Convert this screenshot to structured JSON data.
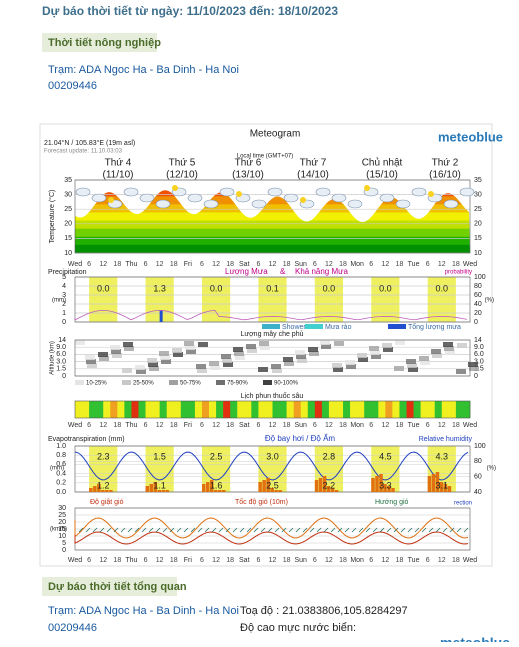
{
  "header": {
    "title": "Dự báo thời tiết từ ngày: 11/10/2023 đến: 18/10/2023"
  },
  "section1": {
    "label": "Thời tiết nông nghiệp",
    "station": "Trạm: ADA Ngoc Ha - Ba Dinh - Ha Noi",
    "code": "00209446"
  },
  "meteogram": {
    "title": "Meteogram",
    "brand": "meteoblue",
    "coords": "21.04°N / 105.83°E (19m asl)",
    "update": "Forecast update: 11.10.03:03",
    "local_time": "Local time (GMT+07)",
    "days": [
      {
        "name": "Thứ 4",
        "date": "(11/10)"
      },
      {
        "name": "Thứ 5",
        "date": "(12/10)"
      },
      {
        "name": "Thứ 6",
        "date": "(13/10)"
      },
      {
        "name": "Thứ 7",
        "date": "(14/10)"
      },
      {
        "name": "Chủ nhật",
        "date": "(15/10)"
      },
      {
        "name": "Thứ 2",
        "date": "(16/10)"
      }
    ],
    "hours": [
      "Wed",
      "6",
      "12",
      "18",
      "Thu",
      "6",
      "12",
      "18",
      "Fri",
      "6",
      "12",
      "18",
      "Sat",
      "6",
      "12",
      "18",
      "Sun",
      "6",
      "12",
      "18",
      "Mon",
      "6",
      "12",
      "18",
      "Tue",
      "6",
      "12",
      "18",
      "Wed"
    ],
    "temperature": {
      "axis_label": "Temperature (°C)",
      "yticks": [
        "35",
        "30",
        "25",
        "20",
        "15",
        "10"
      ]
    },
    "precipitation": {
      "label": "Precipitation",
      "title": "Lượng Mưa",
      "amp": "&",
      "title2": "Khả năng Mưa",
      "right_label": "probability",
      "unit": "(mm)",
      "unit2": "(%)",
      "yticks": [
        "5",
        "4",
        "3",
        "2",
        "1",
        "0"
      ],
      "y2ticks": [
        "100",
        "80",
        "60",
        "40",
        "20",
        "0"
      ],
      "daily": [
        "0.0",
        "1.3",
        "0.0",
        "0.1",
        "0.0",
        "0.0",
        "0.0"
      ],
      "legend": [
        {
          "name": "Shower",
          "color": "#3bb0c9"
        },
        {
          "name": "Mưa rào",
          "color": "#40d0d0"
        },
        {
          "name": "Tổng lượng mưa",
          "color": "#2050d0"
        }
      ]
    },
    "clouds": {
      "title": "Lượng mây che phủ",
      "axis_label": "Altitude (km)",
      "yticks": [
        "14",
        "9.0",
        "6.0",
        "3.0",
        "1.5",
        "0"
      ],
      "legend": [
        "10-25%",
        "25-50%",
        "50-75%",
        "75-90%",
        "90-100%"
      ]
    },
    "spray": {
      "title": "Lịch phun thuốc sâu"
    },
    "evaporation": {
      "label": "Evapotranspiration (mm)",
      "title": "Độ bay hơi / Độ Ẩm",
      "right_label": "Relative humidity",
      "unit": "(mm)",
      "unit2": "(%)",
      "yticks": [
        "1.0",
        "0.8",
        "0.6",
        "0.4",
        "0.2",
        "0.0"
      ],
      "y2ticks": [
        "100",
        "80",
        "60",
        "40"
      ],
      "daily": [
        "2.3",
        "1.5",
        "2.5",
        "3.0",
        "2.8",
        "4.5",
        "4.3"
      ],
      "lower": [
        "1.2",
        "1.1",
        "1.6",
        "2.5",
        "2.2",
        "3.3",
        "3.1"
      ]
    },
    "wind": {
      "gust": "Độ giật gió",
      "speed": "Tốc độ gió (10m)",
      "direction": "Hướng gió",
      "direction_en": "rection",
      "unit": "(km/h)",
      "yticks": [
        "30",
        "25",
        "20",
        "15",
        "10",
        "5",
        "0"
      ]
    }
  },
  "section2": {
    "label": "Dự báo thời tiết tổng quan",
    "station": "Trạm: ADA Ngoc Ha - Ba Dinh - Ha Noi",
    "code": "00209446",
    "coords": "Toạ độ : 21.0383806,105.8284297",
    "altitude": "Độ cao mực nước biển:",
    "brand": "meteoblue"
  }
}
